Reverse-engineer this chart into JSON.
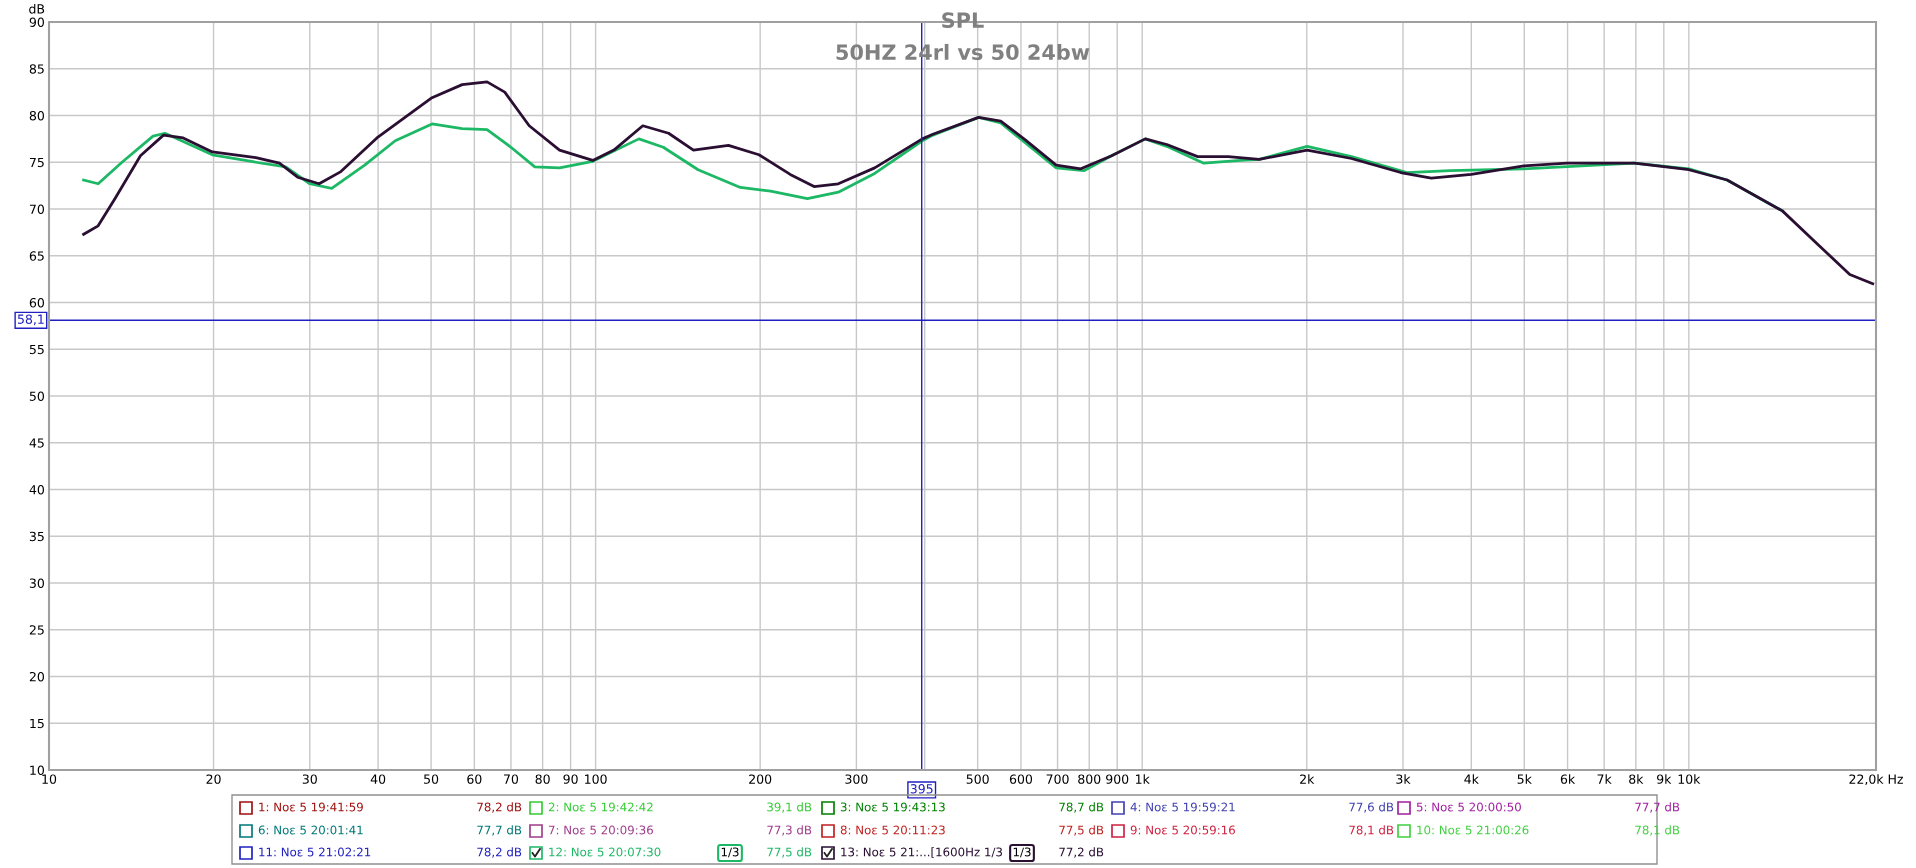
{
  "chart_data": {
    "type": "line",
    "title": "SPL",
    "subtitle": "50HZ 24rl vs 50 24bw",
    "ylabel": "dB",
    "xlim": [
      10,
      22000
    ],
    "ylim": [
      10,
      90
    ],
    "log": "x",
    "grid": true,
    "legend": "bottom",
    "marker": "none",
    "line_style": "solid",
    "xticks": [
      10,
      20,
      30,
      40,
      50,
      60,
      70,
      80,
      90,
      100,
      200,
      300,
      {
        "value": 400,
        "label": null
      },
      500,
      600,
      700,
      800,
      900,
      {
        "value": 1000,
        "label": "1k"
      },
      {
        "value": 2000,
        "label": "2k"
      },
      {
        "value": 3000,
        "label": "3k"
      },
      {
        "value": 4000,
        "label": "4k"
      },
      {
        "value": 5000,
        "label": "5k"
      },
      {
        "value": 6000,
        "label": "6k"
      },
      {
        "value": 7000,
        "label": "7k"
      },
      {
        "value": 8000,
        "label": "8k"
      },
      {
        "value": 9000,
        "label": "9k"
      },
      {
        "value": 10000,
        "label": "10k"
      },
      {
        "value": 22000,
        "label": "22,0k Hz"
      }
    ],
    "yticks": [
      10,
      15,
      20,
      25,
      30,
      35,
      40,
      45,
      50,
      55,
      60,
      65,
      70,
      75,
      80,
      85,
      90
    ],
    "ref_lines": [
      {
        "axis": "x",
        "value": 395,
        "label": "395",
        "color": "#2020c0"
      },
      {
        "axis": "y",
        "value": 58.1,
        "label": "58,1",
        "color": "#2020c0"
      }
    ],
    "series": [
      {
        "name": "1: Νοε 5 19:41:59",
        "color": "#a01010"
      },
      {
        "name": "2: Νοε 5 19:42:42",
        "color": "#33cc33"
      },
      {
        "name": "3: Νοε 5 19:43:13",
        "color": "#008000"
      },
      {
        "name": "4: Νοε 5 19:59:21",
        "color": "#4040b0"
      },
      {
        "name": "5: Νοε 5 20:00:50",
        "color": "#a020a0"
      },
      {
        "name": "6: Νοε 5 20:01:41",
        "color": "#007878"
      },
      {
        "name": "7: Νοε 5 20:09:36",
        "color": "#a03c8c"
      },
      {
        "name": "8: Νοε 5 20:11:23",
        "color": "#c02020"
      },
      {
        "name": "9: Νοε 5 20:59:16",
        "color": "#d02040"
      },
      {
        "name": "10: Νοε 5 21:00:26",
        "color": "#40d040"
      },
      {
        "name": "11: Νοε 5 21:02:21",
        "color": "#2020c0"
      },
      {
        "name": "12: Νοε 5 20:07:30",
        "color": "#1db865",
        "x": [
          11.57,
          12.3,
          13.6,
          15.5,
          16.3,
          19.9,
          23.9,
          27.1,
          30,
          32.9,
          37.8,
          43,
          50.2,
          57,
          63.3,
          70,
          77.4,
          85.9,
          98.8,
          120,
          133,
          154,
          184,
          209,
          244,
          278,
          324,
          396,
          414,
          502,
          551,
          696,
          782,
          879,
          1013,
          1109,
          1296,
          1514,
          1637,
          2003,
          2414,
          3050,
          3657,
          4990,
          7950,
          10000,
          11750,
          14830
        ],
        "values": [
          73.1,
          72.7,
          75.0,
          77.8,
          78.1,
          75.8,
          75.0,
          74.5,
          72.7,
          72.2,
          74.7,
          77.3,
          79.1,
          78.6,
          78.5,
          76.6,
          74.5,
          74.4,
          75.1,
          77.5,
          76.6,
          74.2,
          72.3,
          71.9,
          71.1,
          71.8,
          73.8,
          77.3,
          77.9,
          79.8,
          79.2,
          74.4,
          74.1,
          75.7,
          77.5,
          76.7,
          74.9,
          75.2,
          75.3,
          76.7,
          75.6,
          73.9,
          74.1,
          74.3,
          74.9,
          74.3,
          73.1,
          69.8
        ]
      },
      {
        "name": "13: Νοε 5 21:...[1600Hz 1/3",
        "color": "#2a0f33",
        "x": [
          11.57,
          12.3,
          13.2,
          14.7,
          16.2,
          17.6,
          19.9,
          23.9,
          26.4,
          28.5,
          31.2,
          34.2,
          39.8,
          50.2,
          57,
          63.3,
          68.2,
          75.6,
          85.9,
          98.8,
          108,
          122,
          136,
          151,
          175,
          199,
          227,
          251,
          278,
          324,
          396,
          414,
          502,
          551,
          611,
          696,
          772,
          879,
          1013,
          1109,
          1263,
          1437,
          1637,
          2003,
          2414,
          2970,
          3380,
          4000,
          4990,
          5985,
          7950,
          10000,
          11750,
          14830,
          17300,
          19700,
          21700
        ],
        "values": [
          67.3,
          68.2,
          71.1,
          75.7,
          77.9,
          77.6,
          76.1,
          75.5,
          74.9,
          73.4,
          72.7,
          74.0,
          77.6,
          81.9,
          83.3,
          83.6,
          82.5,
          78.9,
          76.3,
          75.2,
          76.3,
          78.9,
          78.1,
          76.3,
          76.8,
          75.8,
          73.7,
          72.4,
          72.7,
          74.4,
          77.5,
          78.0,
          79.8,
          79.4,
          77.4,
          74.7,
          74.3,
          75.7,
          77.5,
          76.9,
          75.6,
          75.6,
          75.3,
          76.3,
          75.4,
          73.9,
          73.3,
          73.7,
          74.6,
          74.9,
          74.9,
          74.2,
          73.1,
          69.8,
          66.1,
          63.0,
          62.0
        ]
      }
    ],
    "annotations": [
      "78,2 dB",
      "39,1 dB",
      "78,7 dB",
      "77,6 dB",
      "77,7 dB",
      "77,7 dB",
      "77,3 dB",
      "77,5 dB",
      "78,1 dB",
      "78,1 dB",
      "78,2 dB",
      "77,5 dB",
      "77,2 dB",
      "1/3",
      "1/3"
    ]
  }
}
